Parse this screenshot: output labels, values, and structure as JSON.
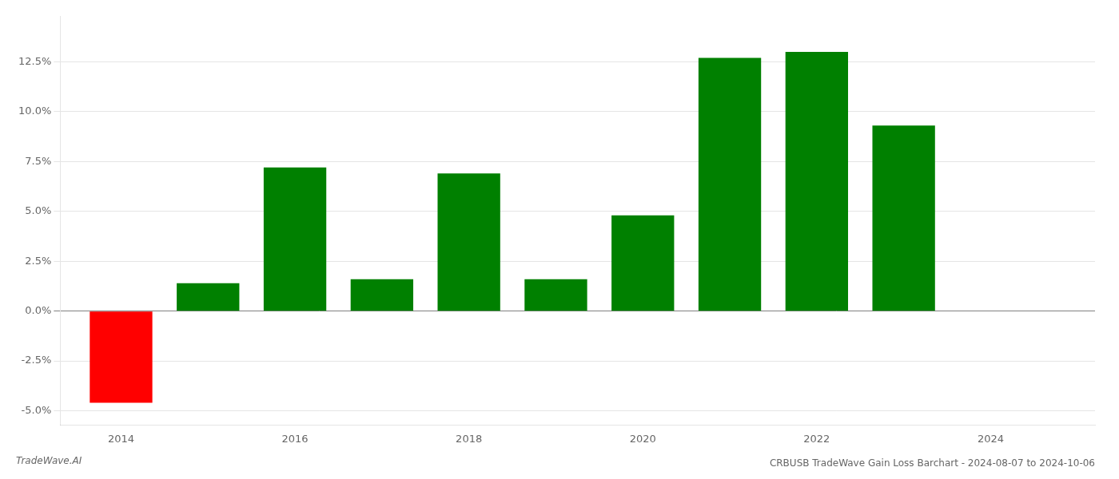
{
  "chart_data": {
    "type": "bar",
    "title": "CRBUSB TradeWave Gain Loss Barchart - 2024-08-07 to 2024-10-06",
    "annotations": [
      "TradeWave.AI"
    ],
    "x": [
      2014,
      2015,
      2016,
      2017,
      2018,
      2019,
      2020,
      2021,
      2022,
      2023
    ],
    "values": [
      -0.046,
      0.014,
      0.072,
      0.016,
      0.069,
      0.016,
      0.048,
      0.127,
      0.13,
      0.093
    ],
    "colors": [
      "#ff0000",
      "#008000",
      "#008000",
      "#008000",
      "#008000",
      "#008000",
      "#008000",
      "#008000",
      "#008000",
      "#008000"
    ],
    "xlim": [
      2013.3,
      2025.2
    ],
    "xticks": [
      2014,
      2016,
      2018,
      2020,
      2022,
      2024
    ],
    "ylim": [
      -0.057,
      0.148
    ],
    "yticks": [
      {
        "value": -0.05,
        "label": "-5.0%"
      },
      {
        "value": -0.025,
        "label": "-2.5%"
      },
      {
        "value": 0.0,
        "label": "0.0%"
      },
      {
        "value": 0.025,
        "label": "2.5%"
      },
      {
        "value": 0.05,
        "label": "5.0%"
      },
      {
        "value": 0.075,
        "label": "7.5%"
      },
      {
        "value": 0.1,
        "label": "10.0%"
      },
      {
        "value": 0.125,
        "label": "12.5%"
      }
    ],
    "grid": true
  }
}
